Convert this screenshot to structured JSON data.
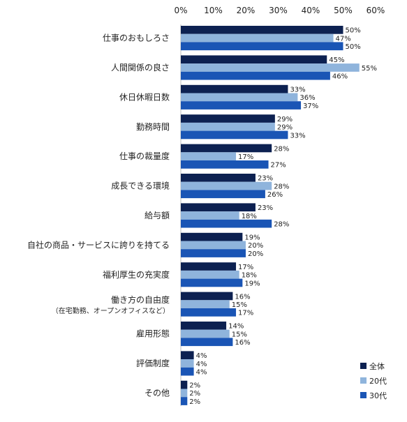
{
  "chart_data": {
    "type": "bar",
    "orientation": "horizontal",
    "title": "",
    "xlabel": "",
    "ylabel": "",
    "xlim": [
      0,
      60
    ],
    "x_ticks": [
      "0%",
      "10%",
      "20%",
      "30%",
      "40%",
      "50%",
      "60%"
    ],
    "x_tick_values": [
      0,
      10,
      20,
      30,
      40,
      50,
      60
    ],
    "grid": false,
    "legend_position": "bottom-right",
    "categories": [
      "仕事のおもしろさ",
      "人間関係の良さ",
      "休日休暇日数",
      "勤務時間",
      "仕事の裁量度",
      "成長できる環境",
      "給与額",
      "自社の商品・サービスに誇りを持てる",
      "福利厚生の充実度",
      "働き方の自由度",
      "雇用形態",
      "評価制度",
      "その他"
    ],
    "category_sublabels": [
      "",
      "",
      "",
      "",
      "",
      "",
      "",
      "",
      "",
      "（在宅勤務、オープンオフィスなど）",
      "",
      "",
      ""
    ],
    "series": [
      {
        "name": "全体",
        "color": "#0d2151",
        "values": [
          50,
          45,
          33,
          29,
          28,
          23,
          23,
          19,
          17,
          16,
          14,
          4,
          2
        ],
        "labels": [
          "50%",
          "45%",
          "33%",
          "29%",
          "28%",
          "23%",
          "23%",
          "19%",
          "17%",
          "16%",
          "14%",
          "4%",
          "2%"
        ]
      },
      {
        "name": "20代",
        "color": "#8fb4dc",
        "values": [
          47,
          55,
          36,
          29,
          17,
          28,
          18,
          20,
          18,
          15,
          15,
          4,
          2
        ],
        "labels": [
          "47%",
          "55%",
          "36%",
          "29%",
          "17%",
          "28%",
          "18%",
          "20%",
          "18%",
          "15%",
          "15%",
          "4%",
          "2%"
        ]
      },
      {
        "name": "30代",
        "color": "#1a55b5",
        "values": [
          50,
          46,
          37,
          33,
          27,
          26,
          28,
          20,
          19,
          17,
          16,
          4,
          2
        ],
        "labels": [
          "50%",
          "46%",
          "37%",
          "33%",
          "27%",
          "26%",
          "28%",
          "20%",
          "19%",
          "17%",
          "16%",
          "4%",
          "2%"
        ]
      }
    ]
  }
}
